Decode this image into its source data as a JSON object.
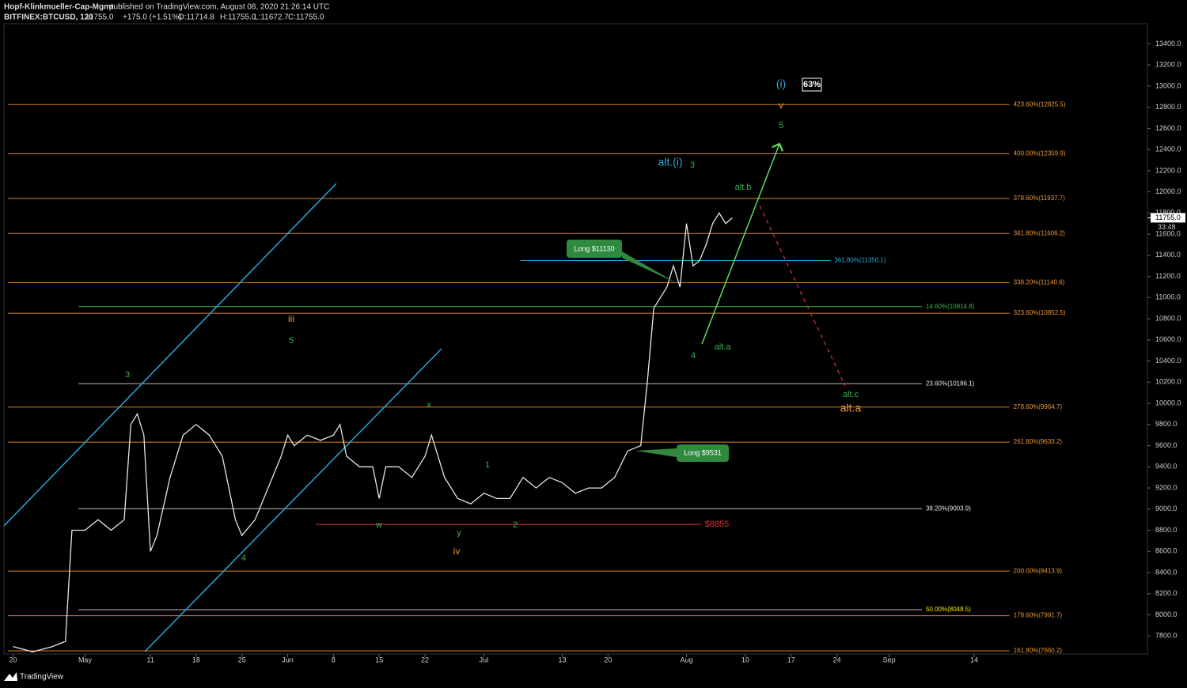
{
  "header": {
    "author": "Hopf-Klinkmueller-Cap-Mgmt",
    "published": "published on TradingView.com, August 08, 2020 21:26:14 UTC"
  },
  "chart_data": {
    "type": "line",
    "symbol": "BITFINEX:BTCUSD, 120",
    "quote": {
      "last": "11755.0",
      "change": "+175.0 (+1.51%)",
      "open": "O:11714.8",
      "high": "H:11755.0",
      "low": "L:11672.7",
      "close": "C:11755.0"
    },
    "x": [
      111,
      114,
      117,
      119,
      120,
      122,
      124,
      126,
      128,
      129,
      130,
      131,
      132,
      133,
      135,
      137,
      139,
      141,
      143,
      145,
      146,
      148,
      150,
      152,
      153,
      154,
      156,
      158,
      160,
      161,
      162,
      164,
      166,
      167,
      168,
      170,
      172,
      174,
      175,
      177,
      179,
      181,
      183,
      185,
      187,
      189,
      191,
      193,
      195,
      197,
      199,
      201,
      203,
      205,
      207,
      208,
      209,
      210,
      211,
      212,
      213,
      214,
      215,
      216,
      217,
      218,
      219,
      220,
      221
    ],
    "values": [
      7700,
      7650,
      7700,
      7750,
      8800,
      8800,
      8900,
      8800,
      8900,
      9800,
      9900,
      9700,
      8600,
      8750,
      9300,
      9700,
      9800,
      9700,
      9500,
      8900,
      8750,
      8900,
      9200,
      9500,
      9700,
      9600,
      9700,
      9650,
      9700,
      9800,
      9500,
      9400,
      9400,
      9100,
      9400,
      9400,
      9300,
      9500,
      9700,
      9300,
      9100,
      9050,
      9150,
      9100,
      9100,
      9300,
      9200,
      9300,
      9250,
      9150,
      9200,
      9200,
      9300,
      9550,
      9600,
      10200,
      10900,
      11000,
      11100,
      11300,
      11100,
      11700,
      11300,
      11350,
      11500,
      11700,
      11800,
      11700,
      11755
    ],
    "color": "#e6e6e6",
    "xlim": [
      109.6,
      284.5
    ],
    "xticks": [
      {
        "value": 111,
        "label": "20"
      },
      {
        "value": 122,
        "label": "May"
      },
      {
        "value": 132,
        "label": "11"
      },
      {
        "value": 139,
        "label": "18"
      },
      {
        "value": 146,
        "label": "25"
      },
      {
        "value": 153,
        "label": "Jun"
      },
      {
        "value": 160,
        "label": "8"
      },
      {
        "value": 167,
        "label": "15"
      },
      {
        "value": 174,
        "label": "22"
      },
      {
        "value": 183,
        "label": "Jul"
      },
      {
        "value": 195,
        "label": "13"
      },
      {
        "value": 202,
        "label": "20"
      },
      {
        "value": 214,
        "label": "Aug"
      },
      {
        "value": 223,
        "label": "10"
      },
      {
        "value": 230,
        "label": "17"
      },
      {
        "value": 237,
        "label": "24"
      },
      {
        "value": 245,
        "label": "Sep"
      },
      {
        "value": 258,
        "label": "14"
      }
    ],
    "ylim": [
      7630,
      13590
    ],
    "yticks": [
      {
        "value": 7800,
        "label": "7800.0"
      },
      {
        "value": 8000,
        "label": "8000.0"
      },
      {
        "value": 8200,
        "label": "8200.0"
      },
      {
        "value": 8400,
        "label": "8400.0"
      },
      {
        "value": 8600,
        "label": "8600.0"
      },
      {
        "value": 8800,
        "label": "8800.0"
      },
      {
        "value": 9000,
        "label": "9000.0"
      },
      {
        "value": 9200,
        "label": "9200.0"
      },
      {
        "value": 9400,
        "label": "9400.0"
      },
      {
        "value": 9600,
        "label": "9600.0"
      },
      {
        "value": 9800,
        "label": "9800.0"
      },
      {
        "value": 10000,
        "label": "10000.0"
      },
      {
        "value": 10200,
        "label": "10200.0"
      },
      {
        "value": 10400,
        "label": "10400.0"
      },
      {
        "value": 10600,
        "label": "10600.0"
      },
      {
        "value": 10800,
        "label": "10800.0"
      },
      {
        "value": 11000,
        "label": "11000.0"
      },
      {
        "value": 11200,
        "label": "11200.0"
      },
      {
        "value": 11400,
        "label": "11400.0"
      },
      {
        "value": 11600,
        "label": "11600.0"
      },
      {
        "value": 11800,
        "label": "11800.0"
      },
      {
        "value": 12000,
        "label": "12000.0"
      },
      {
        "value": 12200,
        "label": "12200.0"
      },
      {
        "value": 12400,
        "label": "12400.0"
      },
      {
        "value": 12600,
        "label": "12600.0"
      },
      {
        "value": 12800,
        "label": "12800.0"
      },
      {
        "value": 13000,
        "label": "13000.0"
      },
      {
        "value": 13200,
        "label": "13200.0"
      },
      {
        "value": 13400,
        "label": "13400.0"
      }
    ],
    "levels": [
      {
        "label": "423.60%(12825.5)",
        "price": 12825.5,
        "start": 110.2,
        "end": 263.4,
        "color": "#d9822b",
        "label_color": "#e8963a"
      },
      {
        "label": "400.00%(12359.9)",
        "price": 12359.9,
        "start": 110.2,
        "end": 263.4,
        "color": "#d9822b",
        "label_color": "#e8963a"
      },
      {
        "label": "378.60%(11937.7)",
        "price": 11937.7,
        "start": 110.2,
        "end": 263.4,
        "color": "#d9822b",
        "label_color": "#e8963a"
      },
      {
        "label": "361.80%(11606.2)",
        "price": 11606.2,
        "start": 110.2,
        "end": 263.4,
        "color": "#d9822b",
        "label_color": "#e8963a"
      },
      {
        "label": "361.80%(11350.1)",
        "price": 11350.1,
        "start": 188.6,
        "end": 236,
        "color": "#2aa7d6",
        "label_color": "#2aa7d6"
      },
      {
        "label": "338.20%(11140.6)",
        "price": 11140.6,
        "start": 110.2,
        "end": 263.4,
        "color": "#d9822b",
        "label_color": "#e8963a"
      },
      {
        "label": "14.60%(10914.8)",
        "price": 10914.8,
        "start": 121,
        "end": 250,
        "color": "#37b24d",
        "label_color": "#37b24d"
      },
      {
        "label": "323.60%(10852.5)",
        "price": 10852.5,
        "start": 110.2,
        "end": 263.4,
        "color": "#d9822b",
        "label_color": "#e8963a"
      },
      {
        "label": "23.60%(10186.1)",
        "price": 10186.1,
        "start": 121,
        "end": 250,
        "color": "#bbbbbb",
        "label_color": "#e6e6e6"
      },
      {
        "label": "278.60%(9964.7)",
        "price": 9964.7,
        "start": 110.2,
        "end": 263.4,
        "color": "#d9822b",
        "label_color": "#e8963a"
      },
      {
        "label": "261.80%(9633.2)",
        "price": 9633.2,
        "start": 110.2,
        "end": 263.4,
        "color": "#d9822b",
        "label_color": "#e8963a"
      },
      {
        "label": "38.20%(9003.9)",
        "price": 9003.9,
        "start": 121,
        "end": 250,
        "color": "#bbbbbb",
        "label_color": "#e6e6e6"
      },
      {
        "label": "$8855",
        "price": 8855,
        "start": 157.3,
        "end": 216.2,
        "color": "#e03131",
        "label_color": "#e03131"
      },
      {
        "label": "200.00%(8413.9)",
        "price": 8413.9,
        "start": 110.2,
        "end": 263.4,
        "color": "#d9822b",
        "label_color": "#e8963a"
      },
      {
        "label": "50.00%(8048.5)",
        "price": 8048.5,
        "start": 121,
        "end": 250,
        "color": "#bbbbbb",
        "label_color": "#f2e600"
      },
      {
        "label": "178.60%(7991.7)",
        "price": 7991.7,
        "start": 110.2,
        "end": 263.4,
        "color": "#d9822b",
        "label_color": "#e8963a"
      },
      {
        "label": "161.80%(7660.2)",
        "price": 7660.2,
        "start": 110.2,
        "end": 263.4,
        "color": "#d9822b",
        "label_color": "#e8963a"
      }
    ],
    "annotations": [
      {
        "text": "iii",
        "color": "#e8963a"
      },
      {
        "text": "5",
        "color": "#37b24d"
      },
      {
        "text": "3",
        "color": "#37b24d"
      },
      {
        "text": "4",
        "color": "#37b24d"
      },
      {
        "text": "w",
        "color": "#37b24d"
      },
      {
        "text": "x",
        "color": "#37b24d"
      },
      {
        "text": "y",
        "color": "#37b24d"
      },
      {
        "text": "iv",
        "color": "#e8963a"
      },
      {
        "text": "1",
        "color": "#37b24d"
      },
      {
        "text": "2",
        "color": "#37b24d"
      },
      {
        "text": "alt.(i)",
        "color": "#2aa7d6"
      },
      {
        "text": "3",
        "color": "#37b24d"
      },
      {
        "text": "alt.b",
        "color": "#37b24d"
      },
      {
        "text": "4",
        "color": "#37b24d"
      },
      {
        "text": "alt.a",
        "color": "#37b24d"
      },
      {
        "text": "(i)",
        "color": "#2aa7d6"
      },
      {
        "text": "63%",
        "color": "#ffffff"
      },
      {
        "text": "v",
        "color": "#e8963a"
      },
      {
        "text": "5",
        "color": "#37b24d"
      },
      {
        "text": "alt.c",
        "color": "#37b24d"
      },
      {
        "text": "alt.a",
        "color": "#e8963a"
      }
    ],
    "callouts": [
      "Long $11130",
      "Long $9531"
    ],
    "price_tag": {
      "label": "11755.0",
      "value": 11755.0
    },
    "countdown": "33:48"
  },
  "footer": {
    "brand": "TradingView"
  }
}
